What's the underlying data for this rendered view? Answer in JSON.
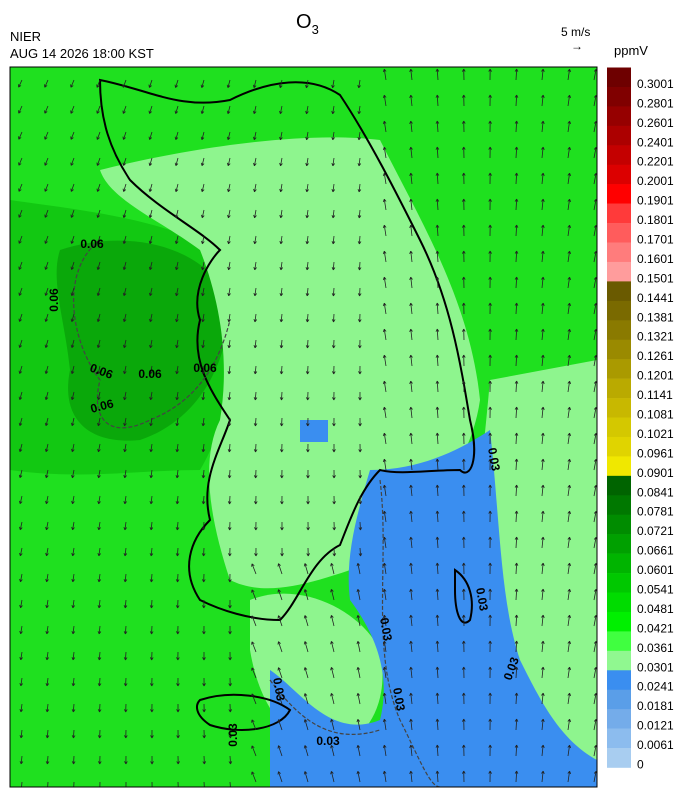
{
  "header": {
    "title": {
      "text": "O",
      "subscript": "3"
    },
    "agency": "NIER",
    "time": "AUG 14 2026 18:00 KST"
  },
  "wind_legend": {
    "label": "5 m/s",
    "arrow": "→"
  },
  "colorbar": {
    "unit": "ppmV",
    "labels": [
      "0.3001",
      "0.2801",
      "0.2601",
      "0.2401",
      "0.2201",
      "0.2001",
      "0.1901",
      "0.1801",
      "0.1701",
      "0.1601",
      "0.1501",
      "0.1441",
      "0.1381",
      "0.1321",
      "0.1261",
      "0.1201",
      "0.1141",
      "0.1081",
      "0.1021",
      "0.0961",
      "0.0901",
      "0.0841",
      "0.0781",
      "0.0721",
      "0.0661",
      "0.0601",
      "0.0541",
      "0.0481",
      "0.0421",
      "0.0361",
      "0.0301",
      "0.0241",
      "0.0181",
      "0.0121",
      "0.0061",
      "0"
    ],
    "colors": [
      "#6e0000",
      "#800000",
      "#960000",
      "#ac0000",
      "#c40000",
      "#dc0000",
      "#ff0000",
      "#ff3a3a",
      "#ff5c5c",
      "#ff7c7c",
      "#ff9c9c",
      "#6a5a00",
      "#7a6a00",
      "#8a7a00",
      "#9a8a00",
      "#aa9a00",
      "#baaa00",
      "#c8b800",
      "#d4c800",
      "#e0d400",
      "#f0e800",
      "#006400",
      "#007800",
      "#008c00",
      "#00a000",
      "#00b400",
      "#00c800",
      "#00dc00",
      "#00f000",
      "#40ff40",
      "#90f890",
      "#3a8ef0",
      "#5a9ee8",
      "#74acea",
      "#8cbcee",
      "#a8cdf0"
    ]
  },
  "contour_labels": [
    "0.06",
    "0.06",
    "0.06",
    "0.06",
    "0.06",
    "0.06",
    "0.03",
    "0.03",
    "0.03",
    "0.03",
    "0.03",
    "0.03",
    "0.03",
    "0.03"
  ]
}
